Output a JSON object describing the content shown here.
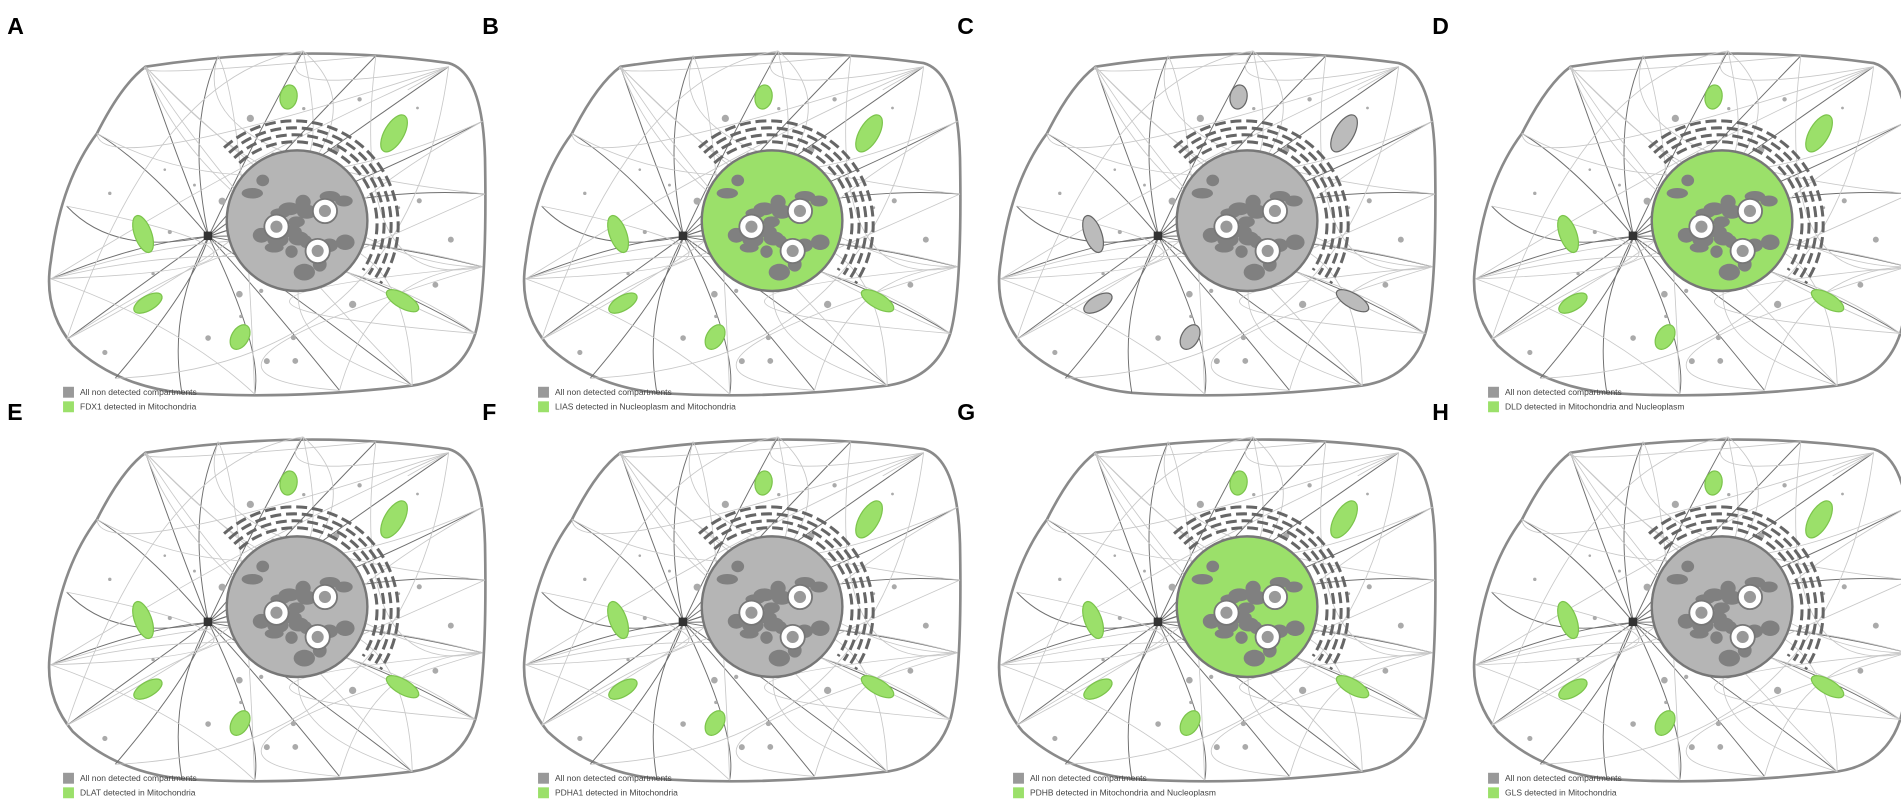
{
  "panels": [
    {
      "label": "A",
      "legend": [
        "All non detected compartments",
        "FDX1 detected in Mitochondria"
      ]
    },
    {
      "label": "B",
      "legend": [
        "All non detected compartments",
        "LIAS detected in Nucleoplasm and Mitochondria"
      ]
    },
    {
      "label": "C"
    },
    {
      "label": "D",
      "legend": [
        "All non detected compartments",
        "DLD detected in Mitochondria and Nucleoplasm"
      ]
    },
    {
      "label": "E",
      "legend": [
        "All non detected compartments",
        "DLAT detected in Mitochondria"
      ]
    },
    {
      "label": "F",
      "legend": [
        "All non detected compartments",
        "PDHA1 detected in Mitochondria"
      ]
    },
    {
      "label": "G",
      "legend": [
        "All non detected compartments",
        "PDHB detected in Mitochondria and Nucleoplasm"
      ]
    },
    {
      "label": "H",
      "legend": [
        "All non detected compartments",
        "GLS detected in Mitochondria"
      ]
    }
  ]
}
